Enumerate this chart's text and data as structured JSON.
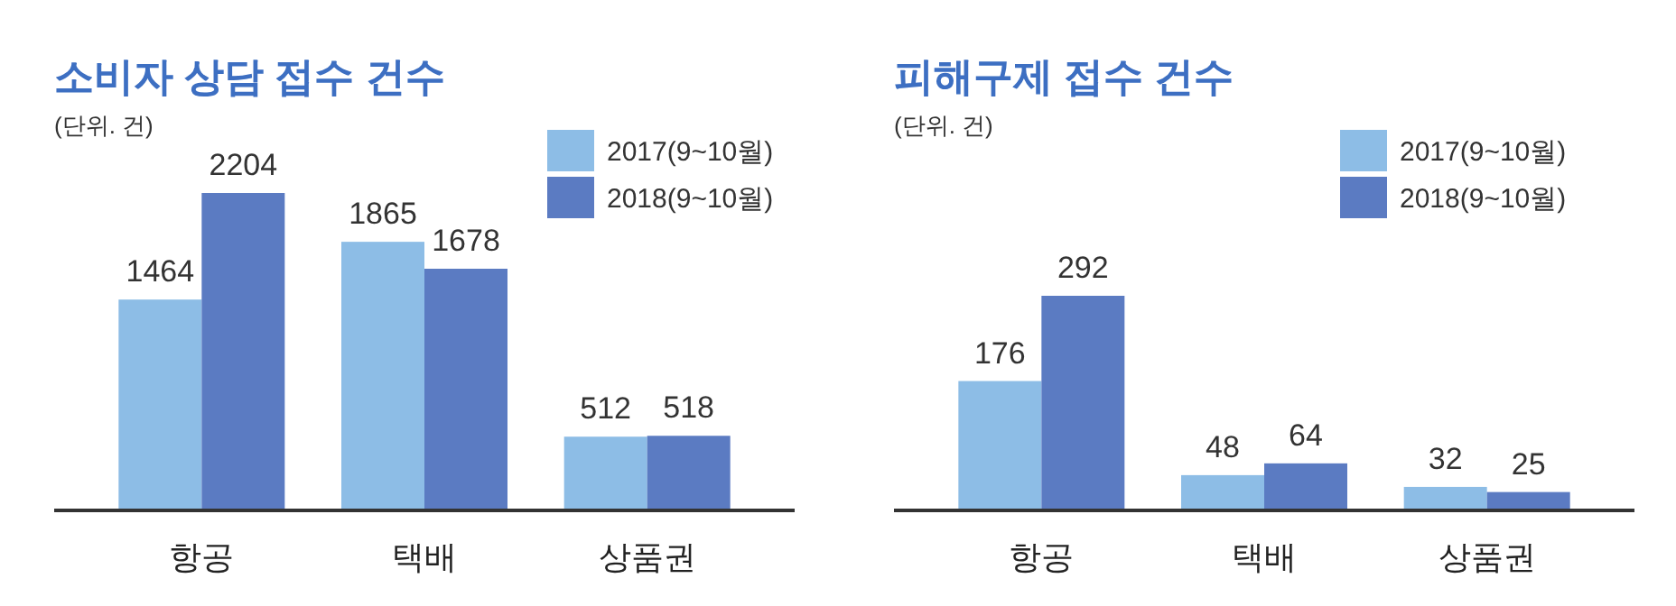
{
  "chart_data": [
    {
      "type": "bar",
      "title": "소비자 상담 접수 건수",
      "subtitle": "(단위. 건)",
      "categories": [
        "항공",
        "택배",
        "상품권"
      ],
      "series": [
        {
          "name": "2017(9~10월)",
          "color": "#8dbde6",
          "values": [
            1464,
            1865,
            512
          ]
        },
        {
          "name": "2018(9~10월)",
          "color": "#5b7bc2",
          "values": [
            2204,
            1678,
            518
          ]
        }
      ],
      "data_labels": true,
      "legend": "top right",
      "grid": false
    },
    {
      "type": "bar",
      "title": "피해구제 접수 건수",
      "subtitle": "(단위. 건)",
      "categories": [
        "항공",
        "택배",
        "상품권"
      ],
      "series": [
        {
          "name": "2017(9~10월)",
          "color": "#8dbde6",
          "values": [
            176,
            48,
            32
          ]
        },
        {
          "name": "2018(9~10월)",
          "color": "#5b7bc2",
          "values": [
            292,
            64,
            25
          ]
        }
      ],
      "data_labels": true,
      "legend": "top right",
      "grid": false
    }
  ]
}
